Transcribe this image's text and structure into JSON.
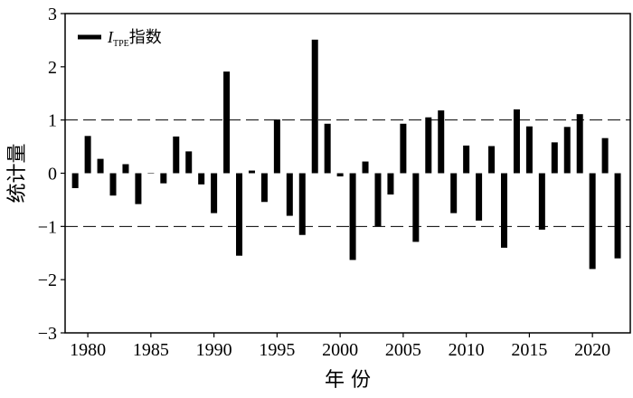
{
  "chart_data": {
    "type": "bar",
    "title": "",
    "xlabel": "年 份",
    "ylabel": "统计量",
    "legend": {
      "placement": "top-left",
      "entries": [
        {
          "name_main": "I",
          "name_sub": "TPE",
          "name_suffix": "指数",
          "color": "#000000"
        }
      ]
    },
    "xlim": [
      1978.2,
      2023
    ],
    "ylim": [
      -3,
      3
    ],
    "xticks": [
      1980,
      1985,
      1990,
      1995,
      2000,
      2005,
      2010,
      2015,
      2020
    ],
    "yticks": [
      3,
      2,
      1,
      0,
      -1,
      -2,
      -3
    ],
    "ytick_labels": [
      "3",
      "2",
      "1",
      "0",
      "−1",
      "−2",
      "−3"
    ],
    "reference_lines": [
      1,
      -1
    ],
    "reference_line_style": "dashed",
    "grid": false,
    "bar_color": "#000000",
    "x": [
      1979,
      1980,
      1981,
      1982,
      1983,
      1984,
      1985,
      1986,
      1987,
      1988,
      1989,
      1990,
      1991,
      1992,
      1993,
      1994,
      1995,
      1996,
      1997,
      1998,
      1999,
      2000,
      2001,
      2002,
      2003,
      2004,
      2005,
      2006,
      2007,
      2008,
      2009,
      2010,
      2011,
      2012,
      2013,
      2014,
      2015,
      2016,
      2017,
      2018,
      2019,
      2020,
      2021,
      2022
    ],
    "values": [
      -0.28,
      0.7,
      0.27,
      -0.42,
      0.17,
      -0.58,
      0.0,
      -0.19,
      0.69,
      0.41,
      -0.21,
      -0.75,
      1.91,
      -1.55,
      0.05,
      -0.54,
      1.01,
      -0.8,
      -1.16,
      2.51,
      0.93,
      -0.06,
      -1.63,
      0.22,
      -1.0,
      -0.4,
      0.93,
      -1.29,
      1.05,
      1.18,
      -0.75,
      0.52,
      -0.89,
      0.51,
      -1.4,
      1.2,
      0.88,
      -1.06,
      0.58,
      0.87,
      1.11,
      -1.8,
      0.66,
      -1.6
    ]
  }
}
